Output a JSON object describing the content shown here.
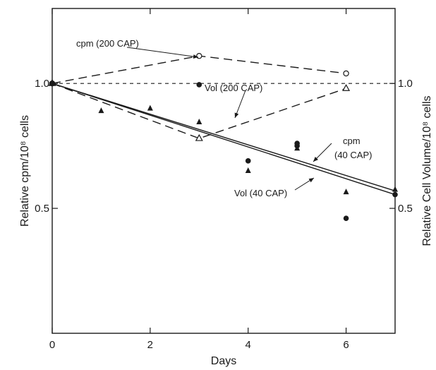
{
  "chart_data": {
    "type": "scatter",
    "xlabel": "Days",
    "ylabel_left": "Relative cpm/10⁸ cells",
    "ylabel_right": "Relative Cell Volume/10⁸ cells",
    "xlim": [
      0,
      7
    ],
    "ylim": [
      0,
      1.3
    ],
    "x_ticks": [
      "0",
      "2",
      "4",
      "6"
    ],
    "y_ticks_left": [
      "0.5",
      "1.0"
    ],
    "y_ticks_right": [
      "0.5",
      "1.0"
    ],
    "reference_line": {
      "y": 1.0,
      "style": "dashed"
    },
    "series": [
      {
        "name": "cpm (200 CAP)",
        "marker": "open-circle",
        "line": "dashed",
        "points": [
          [
            0,
            1.0
          ],
          [
            3,
            1.11
          ],
          [
            6,
            1.04
          ]
        ]
      },
      {
        "name": "Vol (200 CAP)",
        "marker": "open-triangle",
        "line": "dashed",
        "points": [
          [
            0,
            1.0
          ],
          [
            3,
            0.78
          ],
          [
            6,
            0.98
          ]
        ]
      },
      {
        "name": "cpm (40 CAP)",
        "marker": "filled-circle",
        "line": "solid",
        "fit": [
          [
            0,
            1.0
          ],
          [
            7,
            0.57
          ]
        ],
        "points": [
          [
            0,
            1.0
          ],
          [
            3,
            0.995
          ],
          [
            4,
            0.69
          ],
          [
            5,
            0.76
          ],
          [
            5,
            0.75
          ],
          [
            6,
            0.46
          ],
          [
            7,
            0.555
          ]
        ]
      },
      {
        "name": "Vol (40 CAP)",
        "marker": "filled-triangle",
        "line": "solid",
        "fit": [
          [
            0,
            1.0
          ],
          [
            7,
            0.555
          ]
        ],
        "points": [
          [
            0,
            1.0
          ],
          [
            1,
            0.89
          ],
          [
            2,
            0.9
          ],
          [
            3,
            0.845
          ],
          [
            4,
            0.65
          ],
          [
            5,
            0.74
          ],
          [
            6,
            0.565
          ],
          [
            7,
            0.575
          ]
        ]
      }
    ],
    "annotations": [
      {
        "text": "cpm (200 CAP)",
        "series": "cpm (200 CAP)"
      },
      {
        "text": "Vol (200 CAP)",
        "series": "Vol (200 CAP)"
      },
      {
        "text": "cpm",
        "series": "cpm (40 CAP)"
      },
      {
        "text": "(40 CAP)",
        "series": "cpm (40 CAP)"
      },
      {
        "text": "Vol (40 CAP)",
        "series": "Vol (40 CAP)"
      }
    ]
  }
}
